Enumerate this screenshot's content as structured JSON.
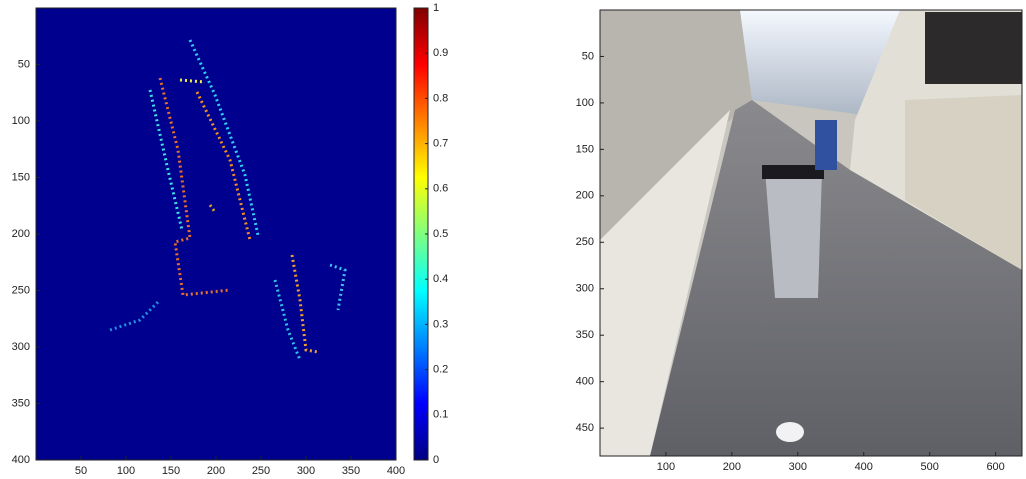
{
  "chart_data": [
    {
      "type": "heatmap",
      "colormap": "jet",
      "xlim": [
        0,
        400
      ],
      "ylim": [
        0,
        400
      ],
      "xticks": [
        50,
        100,
        150,
        200,
        250,
        300,
        350,
        400
      ],
      "yticks": [
        50,
        100,
        150,
        200,
        250,
        300,
        350,
        400
      ],
      "colorbar": {
        "lim": [
          0,
          1
        ],
        "ticks": [
          0,
          0.1,
          0.2,
          0.3,
          0.4,
          0.5,
          0.6,
          0.7,
          0.8,
          0.9,
          1
        ]
      }
    },
    {
      "type": "image",
      "xlim": [
        0,
        640
      ],
      "ylim": [
        0,
        480
      ],
      "xticks": [
        100,
        200,
        300,
        400,
        500,
        600
      ],
      "yticks": [
        50,
        100,
        150,
        200,
        250,
        300,
        350,
        400,
        450
      ]
    }
  ]
}
